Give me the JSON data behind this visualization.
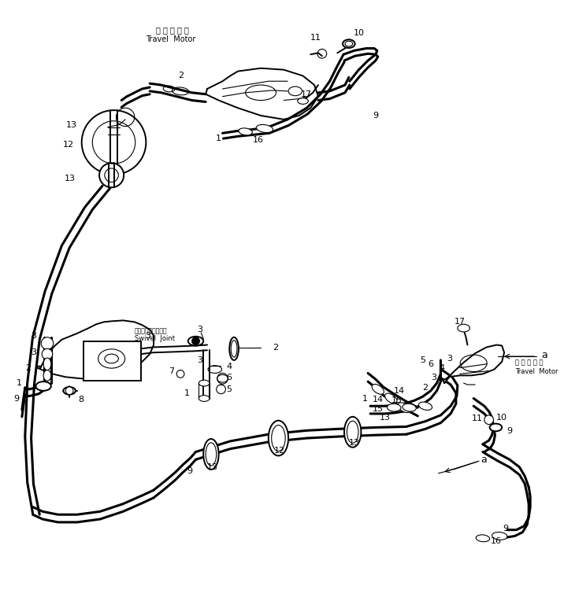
{
  "background_color": "#ffffff",
  "line_color": "#000000",
  "figure_width": 7.16,
  "figure_height": 7.73,
  "dpi": 100,
  "labels": {
    "travel_motor_top_jp": "走 行 モ ー タ",
    "travel_motor_top_en": "Travel  Motor",
    "travel_motor_right_jp": "走 行 モ ー タ",
    "travel_motor_right_en": "Travel  Motor",
    "swivel_joint_jp": "スイベルジョイント",
    "swivel_joint_en": "Swivel  Joint"
  }
}
